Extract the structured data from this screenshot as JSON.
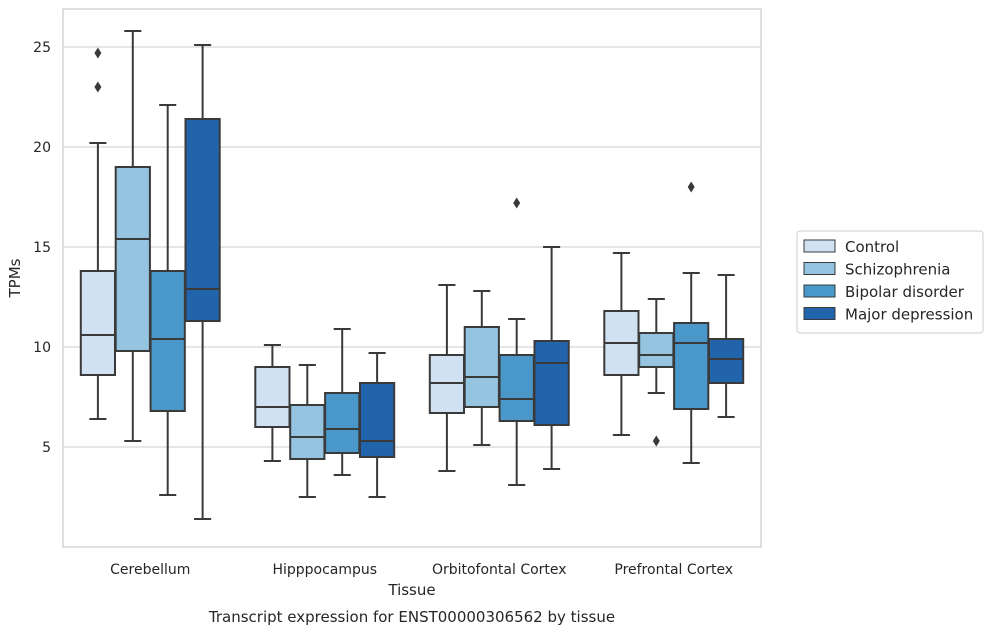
{
  "chart_data": {
    "type": "box",
    "title": "",
    "xlabel": "Tissue",
    "ylabel": "TPMs",
    "caption": "Transcript expression for ENST00000306562 by tissue",
    "ylim": [
      0.0,
      26.9
    ],
    "yticks": [
      5,
      10,
      15,
      20,
      25
    ],
    "grid": "horizontal",
    "legend_position": "right",
    "categories": [
      "Cerebellum",
      "Hipppocampus",
      "Orbitofontal Cortex",
      "Prefrontal Cortex"
    ],
    "series": [
      {
        "name": "Control",
        "color": "#d0e1f2",
        "boxes": [
          {
            "whislo": 6.4,
            "q1": 8.6,
            "med": 10.6,
            "q3": 13.8,
            "whishi": 20.2,
            "fliers": [
              23.0,
              24.7
            ]
          },
          {
            "whislo": 4.3,
            "q1": 6.0,
            "med": 7.0,
            "q3": 9.0,
            "whishi": 10.1,
            "fliers": []
          },
          {
            "whislo": 3.8,
            "q1": 6.7,
            "med": 8.2,
            "q3": 9.6,
            "whishi": 13.1,
            "fliers": []
          },
          {
            "whislo": 5.6,
            "q1": 8.6,
            "med": 10.2,
            "q3": 11.8,
            "whishi": 14.7,
            "fliers": []
          }
        ]
      },
      {
        "name": "Schizophrenia",
        "color": "#94c4df",
        "boxes": [
          {
            "whislo": 5.3,
            "q1": 9.8,
            "med": 15.4,
            "q3": 19.0,
            "whishi": 25.8,
            "fliers": []
          },
          {
            "whislo": 2.5,
            "q1": 4.4,
            "med": 5.5,
            "q3": 7.1,
            "whishi": 9.1,
            "fliers": []
          },
          {
            "whislo": 5.1,
            "q1": 7.0,
            "med": 8.5,
            "q3": 11.0,
            "whishi": 12.8,
            "fliers": []
          },
          {
            "whislo": 7.7,
            "q1": 9.0,
            "med": 9.6,
            "q3": 10.7,
            "whishi": 12.4,
            "fliers": [
              5.3
            ]
          }
        ]
      },
      {
        "name": "Bipolar disorder",
        "color": "#4a98c9",
        "boxes": [
          {
            "whislo": 2.6,
            "q1": 6.8,
            "med": 10.4,
            "q3": 13.8,
            "whishi": 22.1,
            "fliers": []
          },
          {
            "whislo": 3.6,
            "q1": 4.7,
            "med": 5.9,
            "q3": 7.7,
            "whishi": 10.9,
            "fliers": []
          },
          {
            "whislo": 3.1,
            "q1": 6.3,
            "med": 7.4,
            "q3": 9.6,
            "whishi": 11.4,
            "fliers": [
              17.2
            ]
          },
          {
            "whislo": 4.2,
            "q1": 6.9,
            "med": 10.2,
            "q3": 11.2,
            "whishi": 13.7,
            "fliers": [
              18.0
            ]
          }
        ]
      },
      {
        "name": "Major depression",
        "color": "#2164ab",
        "boxes": [
          {
            "whislo": 1.4,
            "q1": 11.3,
            "med": 12.9,
            "q3": 21.4,
            "whishi": 25.1,
            "fliers": []
          },
          {
            "whislo": 2.5,
            "q1": 4.5,
            "med": 5.3,
            "q3": 8.2,
            "whishi": 9.7,
            "fliers": []
          },
          {
            "whislo": 3.9,
            "q1": 6.1,
            "med": 9.2,
            "q3": 10.3,
            "whishi": 15.0,
            "fliers": []
          },
          {
            "whislo": 6.5,
            "q1": 8.2,
            "med": 9.4,
            "q3": 10.4,
            "whishi": 13.6,
            "fliers": []
          }
        ]
      }
    ]
  }
}
